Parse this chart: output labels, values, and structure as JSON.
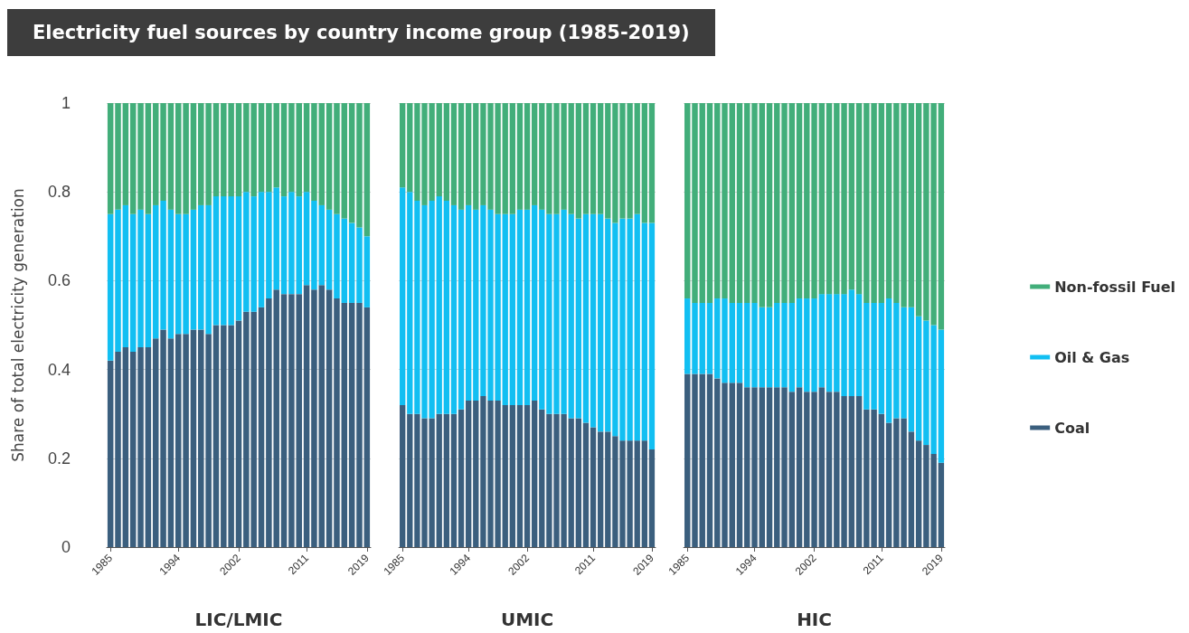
{
  "chart_data": [
    {
      "type": "bar",
      "title": "Electricity fuel sources by country income group (1985-2019)",
      "ylabel": "Share of total electricity generation",
      "xlabel": "LIC/LMIC",
      "stacked": true,
      "grid": "y",
      "categories": [
        "1985",
        null,
        null,
        null,
        null,
        null,
        null,
        null,
        null,
        "1994",
        null,
        null,
        null,
        null,
        null,
        null,
        null,
        "2002",
        null,
        null,
        null,
        null,
        null,
        null,
        null,
        null,
        "2011",
        null,
        null,
        null,
        null,
        null,
        null,
        null,
        "2019"
      ],
      "ylim": [
        0,
        1
      ],
      "yticks": [
        0,
        0.2,
        0.4,
        0.6,
        0.8,
        1
      ],
      "series": [
        {
          "color": "#3b5f7e",
          "values": [
            0.42,
            0.44,
            0.45,
            0.44,
            0.45,
            0.45,
            0.47,
            0.49,
            0.47,
            0.48,
            0.48,
            0.49,
            0.49,
            0.48,
            0.5,
            0.5,
            0.5,
            0.51,
            0.53,
            0.53,
            0.54,
            0.56,
            0.58,
            0.57,
            0.57,
            0.57,
            0.59,
            0.58,
            0.59,
            0.58,
            0.56,
            0.55,
            0.55,
            0.55,
            0.54
          ]
        },
        {
          "color": "#12bff2",
          "values": [
            0.33,
            0.32,
            0.32,
            0.31,
            0.31,
            0.3,
            0.3,
            0.29,
            0.29,
            0.27,
            0.27,
            0.27,
            0.28,
            0.29,
            0.29,
            0.29,
            0.29,
            0.28,
            0.27,
            0.26,
            0.26,
            0.24,
            0.23,
            0.22,
            0.23,
            0.22,
            0.21,
            0.2,
            0.18,
            0.18,
            0.19,
            0.19,
            0.18,
            0.17,
            0.16
          ]
        },
        {
          "color": "#42ae7a",
          "values": [
            0.25,
            0.24,
            0.23,
            0.25,
            0.24,
            0.25,
            0.23,
            0.22,
            0.24,
            0.25,
            0.25,
            0.24,
            0.23,
            0.23,
            0.21,
            0.21,
            0.21,
            0.21,
            0.2,
            0.21,
            0.2,
            0.2,
            0.19,
            0.21,
            0.2,
            0.21,
            0.2,
            0.22,
            0.23,
            0.24,
            0.25,
            0.26,
            0.27,
            0.28,
            0.3
          ]
        }
      ]
    },
    {
      "type": "bar",
      "xlabel": "UMIC",
      "stacked": true,
      "grid": "y",
      "tick_labels": "x",
      "categories": [
        "1985",
        null,
        null,
        null,
        null,
        null,
        null,
        null,
        null,
        "1994",
        null,
        null,
        null,
        null,
        null,
        null,
        null,
        "2002",
        null,
        null,
        null,
        null,
        null,
        null,
        null,
        null,
        "2011",
        null,
        null,
        null,
        null,
        null,
        null,
        null,
        "2019"
      ],
      "ylim": [
        0,
        1
      ],
      "yticks": [
        0,
        0.2,
        0.4,
        0.6,
        0.8,
        1
      ],
      "series": [
        {
          "color": "#3b5f7e",
          "values": [
            0.32,
            0.3,
            0.3,
            0.29,
            0.29,
            0.3,
            0.3,
            0.3,
            0.31,
            0.33,
            0.33,
            0.34,
            0.33,
            0.33,
            0.32,
            0.32,
            0.32,
            0.32,
            0.33,
            0.31,
            0.3,
            0.3,
            0.3,
            0.29,
            0.29,
            0.28,
            0.27,
            0.26,
            0.26,
            0.25,
            0.24,
            0.24,
            0.24,
            0.24,
            0.22
          ]
        },
        {
          "color": "#12bff2",
          "values": [
            0.49,
            0.5,
            0.48,
            0.48,
            0.49,
            0.49,
            0.48,
            0.47,
            0.45,
            0.44,
            0.43,
            0.43,
            0.43,
            0.42,
            0.43,
            0.43,
            0.44,
            0.44,
            0.44,
            0.45,
            0.45,
            0.45,
            0.46,
            0.46,
            0.45,
            0.47,
            0.48,
            0.49,
            0.48,
            0.48,
            0.5,
            0.5,
            0.51,
            0.49,
            0.51
          ]
        },
        {
          "color": "#42ae7a",
          "values": [
            0.19,
            0.2,
            0.22,
            0.23,
            0.22,
            0.21,
            0.22,
            0.23,
            0.24,
            0.23,
            0.24,
            0.23,
            0.24,
            0.25,
            0.25,
            0.25,
            0.24,
            0.24,
            0.23,
            0.24,
            0.25,
            0.25,
            0.24,
            0.25,
            0.26,
            0.25,
            0.25,
            0.25,
            0.26,
            0.27,
            0.26,
            0.26,
            0.25,
            0.27,
            0.27
          ]
        }
      ]
    },
    {
      "type": "bar",
      "xlabel": "HIC",
      "stacked": true,
      "grid": "y",
      "tick_labels": "x",
      "legend": "right",
      "categories": [
        "1985",
        null,
        null,
        null,
        null,
        null,
        null,
        null,
        null,
        "1994",
        null,
        null,
        null,
        null,
        null,
        null,
        null,
        "2002",
        null,
        null,
        null,
        null,
        null,
        null,
        null,
        null,
        "2011",
        null,
        null,
        null,
        null,
        null,
        null,
        null,
        "2019"
      ],
      "ylim": [
        0,
        1
      ],
      "yticks": [
        0,
        0.2,
        0.4,
        0.6,
        0.8,
        1
      ],
      "series": [
        {
          "name": "Coal",
          "color": "#3b5f7e",
          "values": [
            0.39,
            0.39,
            0.39,
            0.39,
            0.38,
            0.37,
            0.37,
            0.37,
            0.36,
            0.36,
            0.36,
            0.36,
            0.36,
            0.36,
            0.35,
            0.36,
            0.35,
            0.35,
            0.36,
            0.35,
            0.35,
            0.34,
            0.34,
            0.34,
            0.31,
            0.31,
            0.3,
            0.28,
            0.29,
            0.29,
            0.26,
            0.24,
            0.23,
            0.21,
            0.19
          ]
        },
        {
          "name": "Oil & Gas",
          "color": "#12bff2",
          "values": [
            0.17,
            0.16,
            0.16,
            0.16,
            0.18,
            0.19,
            0.18,
            0.18,
            0.19,
            0.19,
            0.18,
            0.18,
            0.19,
            0.19,
            0.2,
            0.2,
            0.21,
            0.21,
            0.21,
            0.22,
            0.22,
            0.23,
            0.24,
            0.23,
            0.24,
            0.24,
            0.25,
            0.28,
            0.26,
            0.25,
            0.28,
            0.28,
            0.28,
            0.29,
            0.3
          ]
        },
        {
          "name": "Non-fossil Fuel",
          "color": "#42ae7a",
          "values": [
            0.44,
            0.45,
            0.45,
            0.45,
            0.44,
            0.44,
            0.45,
            0.45,
            0.45,
            0.45,
            0.46,
            0.46,
            0.45,
            0.45,
            0.45,
            0.44,
            0.44,
            0.44,
            0.43,
            0.43,
            0.43,
            0.43,
            0.42,
            0.43,
            0.45,
            0.45,
            0.45,
            0.44,
            0.45,
            0.46,
            0.46,
            0.48,
            0.49,
            0.5,
            0.51
          ]
        }
      ]
    }
  ]
}
